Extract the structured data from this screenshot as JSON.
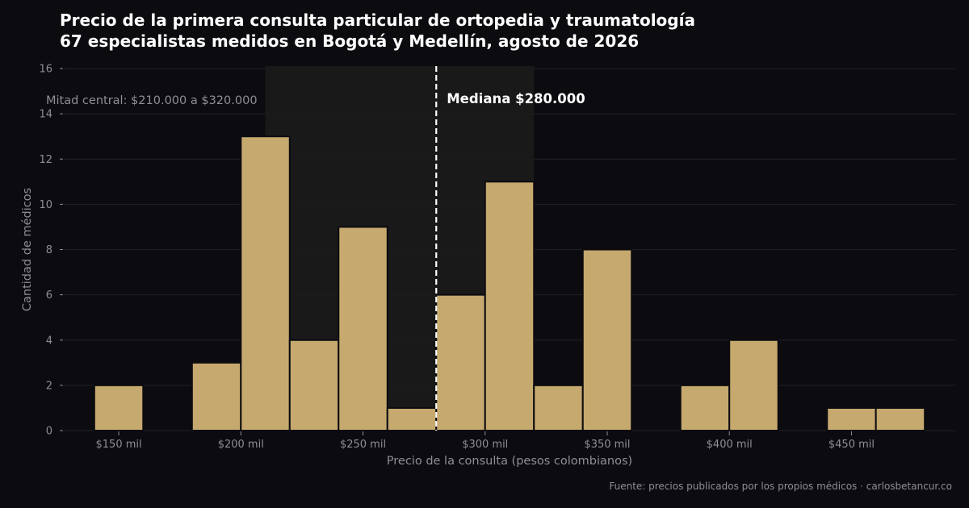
{
  "title_line1": "Precio de la primera consulta particular de ortopedia y traumatología",
  "title_line2": "67 especialistas medidos en Bogotá y Medellín, agosto de 2026",
  "source": "Fuente: precios publicados por los propios médicos · carlosbetancur.co",
  "chart_data": {
    "type": "histogram",
    "xlabel": "Precio de la consulta (pesos colombianos)",
    "ylabel": "Cantidad de médicos",
    "xlim": [
      127500,
      492500
    ],
    "ylim": [
      0,
      16
    ],
    "bin_width": 20000,
    "bins": [
      {
        "start": 140000,
        "end": 160000,
        "count": 2
      },
      {
        "start": 180000,
        "end": 200000,
        "count": 3
      },
      {
        "start": 200000,
        "end": 220000,
        "count": 13
      },
      {
        "start": 220000,
        "end": 240000,
        "count": 4
      },
      {
        "start": 240000,
        "end": 260000,
        "count": 9
      },
      {
        "start": 260000,
        "end": 280000,
        "count": 1
      },
      {
        "start": 280000,
        "end": 300000,
        "count": 6
      },
      {
        "start": 300000,
        "end": 320000,
        "count": 11
      },
      {
        "start": 320000,
        "end": 340000,
        "count": 2
      },
      {
        "start": 340000,
        "end": 360000,
        "count": 8
      },
      {
        "start": 380000,
        "end": 400000,
        "count": 2
      },
      {
        "start": 400000,
        "end": 420000,
        "count": 4
      },
      {
        "start": 440000,
        "end": 460000,
        "count": 1
      },
      {
        "start": 460000,
        "end": 480000,
        "count": 1
      }
    ],
    "x_ticks": [
      {
        "value": 150000,
        "label": "$150 mil"
      },
      {
        "value": 200000,
        "label": "$200 mil"
      },
      {
        "value": 250000,
        "label": "$250 mil"
      },
      {
        "value": 300000,
        "label": "$300 mil"
      },
      {
        "value": 350000,
        "label": "$350 mil"
      },
      {
        "value": 400000,
        "label": "$400 mil"
      },
      {
        "value": 450000,
        "label": "$450 mil"
      }
    ],
    "y_ticks": [
      0,
      2,
      4,
      6,
      8,
      10,
      12,
      14,
      16
    ],
    "median": {
      "value": 280000,
      "label": "Mediana $280.000"
    },
    "central_band": {
      "start": 210000,
      "end": 320000,
      "label": "Mitad central: $210.000 a $320.000"
    },
    "grid": true,
    "colors": {
      "bar": "#c6a96e",
      "bar_edge": "#0c0c10",
      "band": "#1b1b1b",
      "median_line": "#ffffff",
      "grid": "#222226",
      "axis_text": "#8e8e94"
    }
  }
}
